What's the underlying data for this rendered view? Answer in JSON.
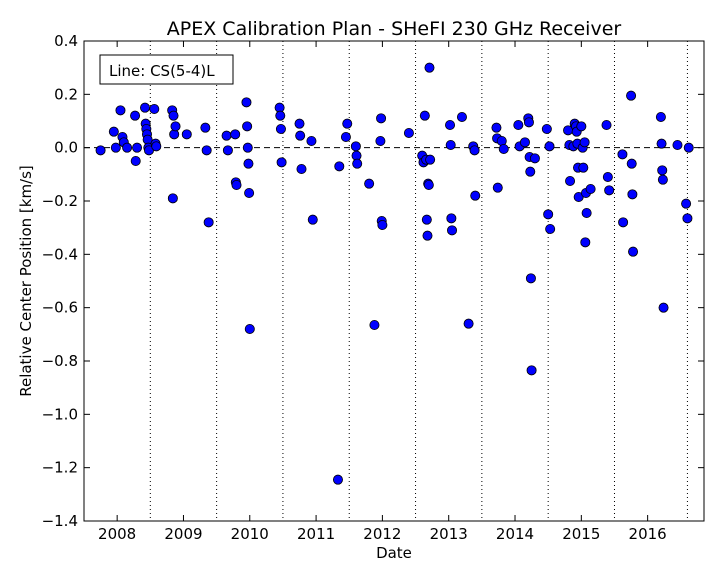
{
  "chart_data": {
    "type": "scatter",
    "title": "APEX Calibration Plan - SHeFI 230 GHz Receiver",
    "xlabel": "Date",
    "ylabel": "Relative Center Position [km/s]",
    "legend_label": "Line: CS(5-4)L",
    "legend_placement": "top-left",
    "xlim": [
      2007.5,
      2016.85
    ],
    "ylim": [
      -1.4,
      0.4
    ],
    "x_ticks": [
      2008,
      2009,
      2010,
      2011,
      2012,
      2013,
      2014,
      2015,
      2016
    ],
    "x_tick_labels": [
      "2008",
      "2009",
      "2010",
      "2011",
      "2012",
      "2013",
      "2014",
      "2015",
      "2016"
    ],
    "y_ticks": [
      -1.4,
      -1.2,
      -1.0,
      -0.8,
      -0.6,
      -0.4,
      -0.2,
      0.0,
      0.2,
      0.4
    ],
    "y_tick_labels": [
      "−1.4",
      "−1.2",
      "−1.0",
      "−0.8",
      "−0.6",
      "−0.4",
      "−0.2",
      "0.0",
      "0.2",
      "0.4"
    ],
    "reference_line_y": 0.0,
    "vertical_dotted_lines_x": [
      2008.5,
      2009.5,
      2010.5,
      2011.5,
      2012.5,
      2013.5,
      2014.5,
      2015.5,
      2016.6
    ],
    "marker_color": "#0000ff",
    "series": [
      {
        "points": [
          [
            2007.75,
            -0.01
          ],
          [
            2007.95,
            0.06
          ],
          [
            2007.98,
            0.0
          ],
          [
            2008.05,
            0.14
          ],
          [
            2008.08,
            0.04
          ],
          [
            2008.1,
            0.02
          ],
          [
            2008.15,
            0.0
          ],
          [
            2008.27,
            0.12
          ],
          [
            2008.28,
            -0.05
          ],
          [
            2008.3,
            0.0
          ],
          [
            2008.42,
            0.15
          ],
          [
            2008.43,
            0.09
          ],
          [
            2008.44,
            0.07
          ],
          [
            2008.45,
            0.05
          ],
          [
            2008.46,
            0.03
          ],
          [
            2008.47,
            0.0
          ],
          [
            2008.48,
            -0.01
          ],
          [
            2008.56,
            0.145
          ],
          [
            2008.58,
            0.015
          ],
          [
            2008.59,
            0.005
          ],
          [
            2008.83,
            0.14
          ],
          [
            2008.85,
            0.12
          ],
          [
            2008.86,
            0.05
          ],
          [
            2008.88,
            0.08
          ],
          [
            2008.84,
            -0.19
          ],
          [
            2009.05,
            0.05
          ],
          [
            2009.33,
            0.075
          ],
          [
            2009.35,
            -0.01
          ],
          [
            2009.38,
            -0.28
          ],
          [
            2009.65,
            0.045
          ],
          [
            2009.67,
            -0.01
          ],
          [
            2009.78,
            0.05
          ],
          [
            2009.79,
            -0.13
          ],
          [
            2009.8,
            -0.14
          ],
          [
            2009.95,
            0.17
          ],
          [
            2009.96,
            0.08
          ],
          [
            2009.97,
            0.0
          ],
          [
            2009.98,
            -0.06
          ],
          [
            2009.99,
            -0.17
          ],
          [
            2010.0,
            -0.68
          ],
          [
            2010.45,
            0.15
          ],
          [
            2010.46,
            0.12
          ],
          [
            2010.47,
            0.07
          ],
          [
            2010.48,
            -0.055
          ],
          [
            2010.75,
            0.09
          ],
          [
            2010.76,
            0.045
          ],
          [
            2010.78,
            -0.08
          ],
          [
            2010.93,
            0.025
          ],
          [
            2010.95,
            -0.27
          ],
          [
            2011.33,
            -1.245
          ],
          [
            2011.35,
            -0.07
          ],
          [
            2011.45,
            0.04
          ],
          [
            2011.47,
            0.09
          ],
          [
            2011.6,
            0.005
          ],
          [
            2011.61,
            -0.03
          ],
          [
            2011.62,
            -0.06
          ],
          [
            2011.8,
            -0.135
          ],
          [
            2011.88,
            -0.665
          ],
          [
            2011.97,
            0.025
          ],
          [
            2011.98,
            0.11
          ],
          [
            2011.99,
            -0.275
          ],
          [
            2012.0,
            -0.29
          ],
          [
            2012.4,
            0.055
          ],
          [
            2012.6,
            -0.03
          ],
          [
            2012.62,
            -0.055
          ],
          [
            2012.64,
            0.12
          ],
          [
            2012.66,
            -0.045
          ],
          [
            2012.67,
            -0.27
          ],
          [
            2012.68,
            -0.33
          ],
          [
            2012.69,
            -0.135
          ],
          [
            2012.7,
            -0.14
          ],
          [
            2012.71,
            0.3
          ],
          [
            2012.72,
            -0.045
          ],
          [
            2013.02,
            0.085
          ],
          [
            2013.03,
            0.01
          ],
          [
            2013.04,
            -0.265
          ],
          [
            2013.05,
            -0.31
          ],
          [
            2013.2,
            0.115
          ],
          [
            2013.3,
            -0.66
          ],
          [
            2013.37,
            0.005
          ],
          [
            2013.39,
            -0.01
          ],
          [
            2013.4,
            -0.18
          ],
          [
            2013.72,
            0.075
          ],
          [
            2013.73,
            0.035
          ],
          [
            2013.74,
            -0.15
          ],
          [
            2013.8,
            0.025
          ],
          [
            2013.83,
            -0.005
          ],
          [
            2014.05,
            0.085
          ],
          [
            2014.07,
            0.005
          ],
          [
            2014.15,
            0.02
          ],
          [
            2014.2,
            0.11
          ],
          [
            2014.21,
            0.095
          ],
          [
            2014.22,
            -0.035
          ],
          [
            2014.23,
            -0.09
          ],
          [
            2014.24,
            -0.49
          ],
          [
            2014.25,
            -0.835
          ],
          [
            2014.3,
            -0.04
          ],
          [
            2014.48,
            0.07
          ],
          [
            2014.5,
            -0.25
          ],
          [
            2014.52,
            0.005
          ],
          [
            2014.53,
            -0.305
          ],
          [
            2014.8,
            0.065
          ],
          [
            2014.82,
            0.01
          ],
          [
            2014.83,
            -0.125
          ],
          [
            2014.88,
            0.005
          ],
          [
            2014.9,
            0.09
          ],
          [
            2014.92,
            0.08
          ],
          [
            2014.93,
            0.06
          ],
          [
            2014.94,
            0.015
          ],
          [
            2014.95,
            -0.075
          ],
          [
            2014.96,
            -0.185
          ],
          [
            2015.0,
            0.08
          ],
          [
            2015.02,
            0.0
          ],
          [
            2015.03,
            -0.075
          ],
          [
            2015.05,
            0.02
          ],
          [
            2015.06,
            -0.355
          ],
          [
            2015.07,
            -0.17
          ],
          [
            2015.08,
            -0.245
          ],
          [
            2015.14,
            -0.155
          ],
          [
            2015.38,
            0.085
          ],
          [
            2015.4,
            -0.11
          ],
          [
            2015.42,
            -0.16
          ],
          [
            2015.62,
            -0.025
          ],
          [
            2015.63,
            -0.28
          ],
          [
            2015.75,
            0.195
          ],
          [
            2015.76,
            -0.06
          ],
          [
            2015.77,
            -0.175
          ],
          [
            2015.78,
            -0.39
          ],
          [
            2016.2,
            0.115
          ],
          [
            2016.21,
            0.015
          ],
          [
            2016.22,
            -0.085
          ],
          [
            2016.23,
            -0.12
          ],
          [
            2016.24,
            -0.6
          ],
          [
            2016.45,
            0.01
          ],
          [
            2016.58,
            -0.21
          ],
          [
            2016.6,
            -0.265
          ],
          [
            2016.62,
            0.0
          ]
        ]
      }
    ]
  }
}
